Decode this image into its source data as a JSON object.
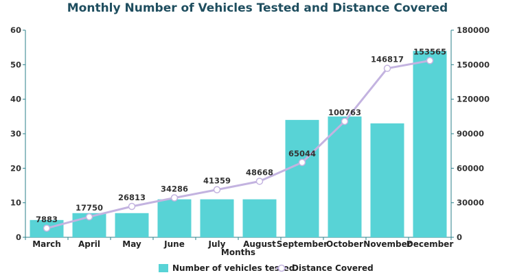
{
  "chart_data": {
    "type": "bar",
    "title": "Monthly Number of Vehicles Tested and Distance Covered",
    "xlabel": "Months",
    "categories": [
      "March",
      "April",
      "May",
      "June",
      "July",
      "August",
      "September",
      "October",
      "November",
      "December"
    ],
    "series": [
      {
        "name": "Number of vehicles tested",
        "type": "bar",
        "axis": "left",
        "color": "#58d3d6",
        "values": [
          5,
          7,
          7,
          11,
          11,
          11,
          34,
          35,
          33,
          54
        ]
      },
      {
        "name": "Distance Covered",
        "type": "line",
        "axis": "right",
        "color": "#c3b3e0",
        "values": [
          7883,
          17750,
          26813,
          34286,
          41359,
          48668,
          65044,
          100763,
          146817,
          153565
        ],
        "data_labels": [
          "7883",
          "17750",
          "26813",
          "34286",
          "41359",
          "48668",
          "65044",
          "100763",
          "146817",
          "153565"
        ]
      }
    ],
    "y_left": {
      "min": 0,
      "max": 60,
      "ticks": [
        0,
        10,
        20,
        30,
        40,
        50,
        60
      ]
    },
    "y_right": {
      "min": 0,
      "max": 180000,
      "ticks": [
        0,
        30000,
        60000,
        90000,
        120000,
        150000,
        180000
      ]
    },
    "legend": {
      "placement": "bottom"
    },
    "grid": false,
    "axis_color": "#2a7f8a"
  }
}
